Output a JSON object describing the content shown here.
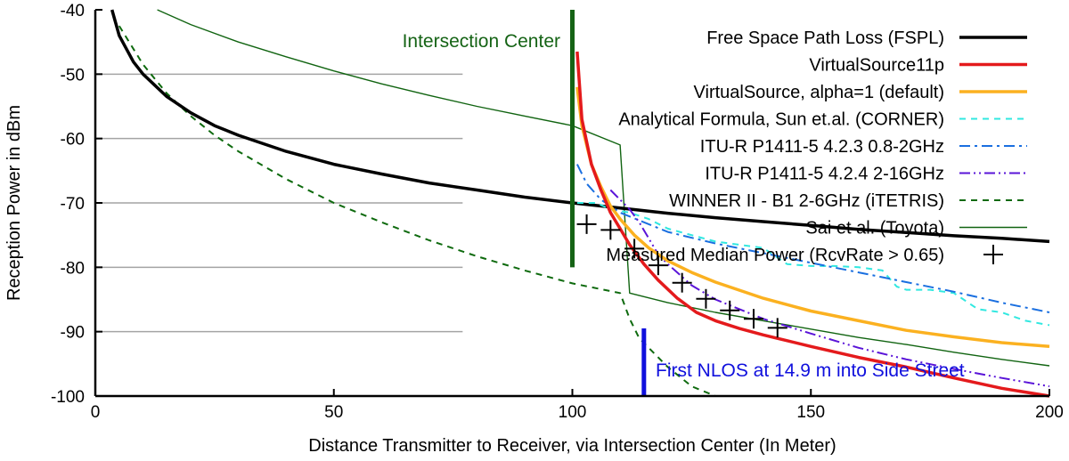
{
  "chart_data": {
    "type": "line",
    "title": "",
    "xlabel": "Distance Transmitter to Receiver, via Intersection Center (In Meter)",
    "ylabel": "Reception Power in dBm",
    "xlim": [
      0,
      200
    ],
    "ylim": [
      -100,
      -40
    ],
    "x_ticks": [
      0,
      50,
      100,
      150,
      200
    ],
    "y_ticks": [
      -100,
      -90,
      -80,
      -70,
      -60,
      -50,
      -40
    ],
    "grid": "horizontal at -50, -60, -70, -80, -90",
    "legend_position": "top-right",
    "series": [
      {
        "name": "Free Space Path Loss (FSPL)",
        "color": "#000000",
        "style": "solid",
        "x": [
          3.5,
          5,
          8,
          10,
          15,
          20,
          25,
          30,
          40,
          50,
          60,
          70,
          80,
          90,
          100,
          110,
          120,
          130,
          140,
          150,
          160,
          170,
          180,
          190,
          200
        ],
        "y": [
          -40,
          -44.0,
          -48.1,
          -50.0,
          -53.5,
          -56.0,
          -58.0,
          -59.5,
          -62.0,
          -64.0,
          -65.5,
          -66.9,
          -68.0,
          -69.1,
          -70.0,
          -70.8,
          -71.6,
          -72.3,
          -72.9,
          -73.5,
          -74.1,
          -74.6,
          -75.1,
          -75.5,
          -76.0
        ]
      },
      {
        "name": "VirtualSource11p",
        "color": "#e41a1c",
        "style": "solid",
        "x": [
          101,
          102,
          104,
          106,
          108,
          110,
          112,
          115,
          118,
          122,
          126,
          130,
          135,
          140,
          150,
          160,
          170,
          180,
          190,
          200
        ],
        "y": [
          -46.5,
          -57,
          -64,
          -68,
          -71.5,
          -74,
          -76.5,
          -79.5,
          -82,
          -84.8,
          -87,
          -88.3,
          -89.5,
          -90.5,
          -92.3,
          -94,
          -95.5,
          -97.2,
          -98.8,
          -100
        ]
      },
      {
        "name": "VirtualSource, alpha=1 (default)",
        "color": "#fbb120",
        "style": "solid",
        "x": [
          101,
          102,
          104,
          106,
          108,
          110,
          113,
          116,
          120,
          125,
          130,
          140,
          150,
          160,
          170,
          180,
          190,
          200
        ],
        "y": [
          -52,
          -58,
          -64,
          -67.5,
          -70.5,
          -72.5,
          -75,
          -77,
          -79,
          -80.8,
          -82.3,
          -84.8,
          -86.8,
          -88.3,
          -89.8,
          -90.8,
          -91.7,
          -92.3
        ]
      },
      {
        "name": "Analytical Formula, Sun et.al. (CORNER)",
        "color": "#30e8e0",
        "style": "dashed",
        "x": [
          101,
          105,
          108,
          112,
          116,
          120,
          125,
          130,
          135,
          140,
          143,
          145,
          150,
          155,
          160,
          165,
          168,
          170,
          175,
          180,
          185,
          190,
          195,
          200
        ],
        "y": [
          -70,
          -70,
          -71,
          -71.5,
          -72.5,
          -74,
          -75,
          -76,
          -76.5,
          -77,
          -78.5,
          -79.5,
          -79.8,
          -79.8,
          -80,
          -80.5,
          -83,
          -83.5,
          -83.5,
          -84,
          -86.5,
          -87,
          -88.3,
          -89
        ]
      },
      {
        "name": "ITU-R P1411-5 4.2.3 0.8-2GHz",
        "color": "#1a6fe0",
        "style": "dash-dot",
        "x": [
          101,
          103,
          106,
          108,
          110,
          120,
          130,
          140,
          150,
          160,
          170,
          180,
          190,
          200
        ],
        "y": [
          -64,
          -67,
          -69.5,
          -70.5,
          -71.5,
          -74.5,
          -76.3,
          -77.8,
          -79.3,
          -80.8,
          -82.3,
          -83.8,
          -85.5,
          -87
        ]
      },
      {
        "name": "ITU-R P1411-5 4.2.4 2-16GHz",
        "color": "#5a14d8",
        "style": "dash-dot-dot",
        "x": [
          108,
          110,
          112,
          114,
          116,
          118,
          120,
          125,
          130,
          140,
          150,
          160,
          170,
          180,
          190,
          200
        ],
        "y": [
          -68,
          -69.5,
          -71,
          -73,
          -75.5,
          -78,
          -79.5,
          -82.8,
          -85,
          -88,
          -90.3,
          -92.5,
          -94.3,
          -95.8,
          -97.2,
          -98.5
        ]
      },
      {
        "name": "WINNER II - B1 2-6GHz (iTETRIS)",
        "color": "#0e6a0e",
        "style": "dashed",
        "x": [
          5,
          10,
          15,
          20,
          25,
          30,
          40,
          50,
          60,
          70,
          80,
          90,
          100,
          110,
          112,
          114,
          116,
          120,
          125,
          130
        ],
        "y": [
          -42.5,
          -48.5,
          -53,
          -56.5,
          -59.5,
          -62,
          -66.3,
          -70,
          -73,
          -75.8,
          -78.3,
          -80.5,
          -82.5,
          -84,
          -88,
          -91,
          -92.5,
          -95.5,
          -98.5,
          -100
        ]
      },
      {
        "name": "Sai et al. (Toyota)",
        "color": "#116411",
        "style": "thin-solid",
        "x": [
          13,
          20,
          30,
          40,
          50,
          60,
          70,
          80,
          90,
          100,
          110,
          112,
          120,
          130,
          140,
          150,
          160,
          170,
          180,
          190,
          200
        ],
        "y": [
          -40,
          -42.3,
          -45,
          -47.3,
          -49.5,
          -51.5,
          -53.3,
          -55,
          -56.5,
          -58,
          -61,
          -84,
          -85.5,
          -87,
          -88.3,
          -89.6,
          -90.9,
          -92,
          -93.2,
          -94.3,
          -95.3
        ]
      },
      {
        "name": "Measured Median Power (RcvRate > 0.65)",
        "color": "#000000",
        "style": "plus-markers",
        "x": [
          103,
          108,
          113,
          118,
          123,
          128,
          133,
          138,
          143
        ],
        "y": [
          -73.3,
          -74.2,
          -77.1,
          -79.7,
          -82.4,
          -84.9,
          -86.7,
          -88,
          -89.4
        ]
      }
    ],
    "annotations": [
      {
        "text": "Intersection Center",
        "x": 100,
        "color": "#156315"
      },
      {
        "text": "First NLOS at 14.9 m into Side Street",
        "x": 115,
        "color": "#1010dd"
      }
    ]
  }
}
